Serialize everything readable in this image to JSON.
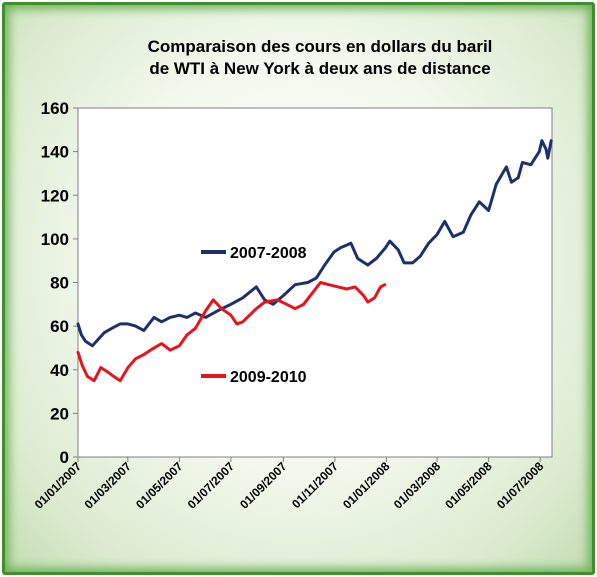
{
  "chart_data": {
    "type": "line",
    "title_lines": [
      "Comparaison des cours en dollars du baril",
      "de WTI à New York à deux ans de distance"
    ],
    "xlabel": "",
    "ylabel": "",
    "ylim": [
      0,
      160
    ],
    "yticks": [
      0,
      20,
      40,
      60,
      80,
      100,
      120,
      140,
      160
    ],
    "xlim": [
      "2007-01-01",
      "2008-07-15"
    ],
    "xtick_labels": [
      "01/01/2007",
      "01/03/2007",
      "01/05/2007",
      "01/07/2007",
      "01/09/2007",
      "01/11/2007",
      "01/01/2008",
      "01/03/2008",
      "01/05/2008",
      "01/07/2008"
    ],
    "xtick_dates": [
      "2007-01-01",
      "2007-03-01",
      "2007-05-01",
      "2007-07-01",
      "2007-09-01",
      "2007-11-01",
      "2008-01-01",
      "2008-03-01",
      "2008-05-01",
      "2008-07-01"
    ],
    "grid": false,
    "series": [
      {
        "name": "2007-2008",
        "color": "#1f2f6b",
        "points": [
          [
            "2007-01-01",
            61
          ],
          [
            "2007-01-05",
            56
          ],
          [
            "2007-01-10",
            53
          ],
          [
            "2007-01-18",
            51
          ],
          [
            "2007-01-25",
            54
          ],
          [
            "2007-02-01",
            57
          ],
          [
            "2007-02-10",
            59
          ],
          [
            "2007-02-20",
            61
          ],
          [
            "2007-03-01",
            61
          ],
          [
            "2007-03-10",
            60
          ],
          [
            "2007-03-20",
            58
          ],
          [
            "2007-04-01",
            64
          ],
          [
            "2007-04-10",
            62
          ],
          [
            "2007-04-20",
            64
          ],
          [
            "2007-05-01",
            65
          ],
          [
            "2007-05-10",
            64
          ],
          [
            "2007-05-20",
            66
          ],
          [
            "2007-06-01",
            64
          ],
          [
            "2007-06-15",
            67
          ],
          [
            "2007-07-01",
            70
          ],
          [
            "2007-07-15",
            73
          ],
          [
            "2007-07-31",
            78
          ],
          [
            "2007-08-10",
            72
          ],
          [
            "2007-08-20",
            70
          ],
          [
            "2007-09-01",
            74
          ],
          [
            "2007-09-15",
            79
          ],
          [
            "2007-09-30",
            80
          ],
          [
            "2007-10-10",
            82
          ],
          [
            "2007-10-20",
            88
          ],
          [
            "2007-10-31",
            94
          ],
          [
            "2007-11-08",
            96
          ],
          [
            "2007-11-20",
            98
          ],
          [
            "2007-11-28",
            91
          ],
          [
            "2007-12-10",
            88
          ],
          [
            "2007-12-20",
            91
          ],
          [
            "2007-12-31",
            96
          ],
          [
            "2008-01-05",
            99
          ],
          [
            "2008-01-15",
            95
          ],
          [
            "2008-01-22",
            89
          ],
          [
            "2008-02-01",
            89
          ],
          [
            "2008-02-10",
            92
          ],
          [
            "2008-02-20",
            98
          ],
          [
            "2008-03-01",
            102
          ],
          [
            "2008-03-10",
            108
          ],
          [
            "2008-03-20",
            101
          ],
          [
            "2008-04-01",
            103
          ],
          [
            "2008-04-10",
            111
          ],
          [
            "2008-04-20",
            117
          ],
          [
            "2008-05-01",
            113
          ],
          [
            "2008-05-10",
            125
          ],
          [
            "2008-05-22",
            133
          ],
          [
            "2008-05-28",
            126
          ],
          [
            "2008-06-05",
            128
          ],
          [
            "2008-06-10",
            135
          ],
          [
            "2008-06-20",
            134
          ],
          [
            "2008-06-30",
            140
          ],
          [
            "2008-07-03",
            145
          ],
          [
            "2008-07-08",
            141
          ],
          [
            "2008-07-10",
            137
          ],
          [
            "2008-07-14",
            145
          ]
        ]
      },
      {
        "name": "2009-2010",
        "color": "#e8141c",
        "points": [
          [
            "2007-01-01",
            48
          ],
          [
            "2007-01-06",
            42
          ],
          [
            "2007-01-12",
            37
          ],
          [
            "2007-01-20",
            35
          ],
          [
            "2007-01-28",
            41
          ],
          [
            "2007-02-05",
            39
          ],
          [
            "2007-02-12",
            37
          ],
          [
            "2007-02-20",
            35
          ],
          [
            "2007-03-01",
            41
          ],
          [
            "2007-03-10",
            45
          ],
          [
            "2007-03-20",
            47
          ],
          [
            "2007-04-01",
            50
          ],
          [
            "2007-04-10",
            52
          ],
          [
            "2007-04-20",
            49
          ],
          [
            "2007-05-01",
            51
          ],
          [
            "2007-05-10",
            56
          ],
          [
            "2007-05-20",
            59
          ],
          [
            "2007-06-01",
            67
          ],
          [
            "2007-06-10",
            72
          ],
          [
            "2007-06-20",
            68
          ],
          [
            "2007-07-01",
            65
          ],
          [
            "2007-07-08",
            61
          ],
          [
            "2007-07-15",
            62
          ],
          [
            "2007-07-31",
            68
          ],
          [
            "2007-08-10",
            71
          ],
          [
            "2007-08-25",
            72
          ],
          [
            "2007-09-05",
            70
          ],
          [
            "2007-09-15",
            68
          ],
          [
            "2007-09-25",
            70
          ],
          [
            "2007-10-05",
            75
          ],
          [
            "2007-10-15",
            80
          ],
          [
            "2007-10-25",
            79
          ],
          [
            "2007-11-05",
            78
          ],
          [
            "2007-11-15",
            77
          ],
          [
            "2007-11-25",
            78
          ],
          [
            "2007-12-05",
            74
          ],
          [
            "2007-12-10",
            71
          ],
          [
            "2007-12-18",
            73
          ],
          [
            "2007-12-25",
            78
          ],
          [
            "2007-12-30",
            79
          ]
        ]
      }
    ],
    "legend_labels": [
      {
        "series": "2007-2008",
        "text": "2007-2008"
      },
      {
        "series": "2009-2010",
        "text": "2009-2010"
      }
    ]
  }
}
